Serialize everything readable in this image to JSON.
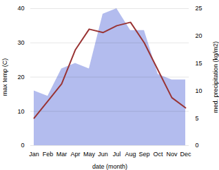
{
  "chart_data": {
    "type": "line",
    "xlabel": "date (month)",
    "ylabel": "max temp (C)",
    "y2label": "med. precipitation (kg/m2)",
    "categories": [
      "Jan",
      "Feb",
      "Mar",
      "Apr",
      "May",
      "Jun",
      "Jul",
      "Aug",
      "Sep",
      "Oct",
      "Nov",
      "Dec"
    ],
    "series": [
      {
        "type": "area",
        "axis": "y2",
        "color": "#b3bcee",
        "values": [
          10,
          9,
          14,
          15,
          14,
          24,
          25,
          21,
          21,
          13,
          12,
          12
        ]
      },
      {
        "type": "line",
        "color": "#993333",
        "values": [
          8,
          13,
          18,
          28,
          34,
          33,
          35,
          36,
          30,
          22,
          14,
          11
        ]
      }
    ],
    "ylim": [
      0,
      40
    ],
    "yticks": [
      0,
      10,
      20,
      30,
      40
    ],
    "y2lim": [
      0,
      25
    ],
    "y2ticks": [
      0,
      5,
      10,
      15,
      20,
      25
    ],
    "grid": true
  }
}
